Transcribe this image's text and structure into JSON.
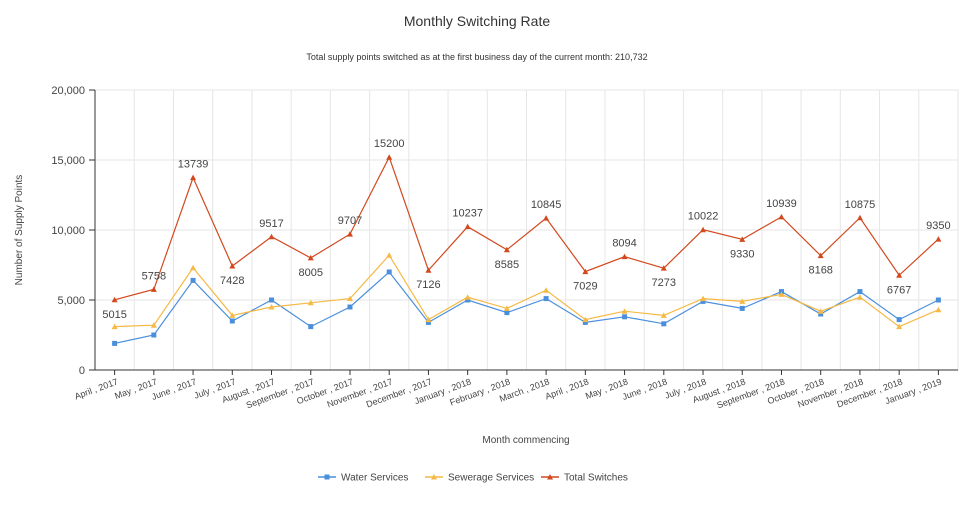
{
  "chart_data": {
    "type": "line",
    "title": "Monthly Switching Rate",
    "subtitle": "Total supply points switched as at the first business day of the current month: 210,732",
    "xlabel": "Month commencing",
    "ylabel": "Number of Supply Points",
    "ylim": [
      0,
      20000
    ],
    "yticks": [
      0,
      5000,
      10000,
      15000,
      20000
    ],
    "ytick_labels": [
      "0",
      "5,000",
      "10,000",
      "15,000",
      "20,000"
    ],
    "grid": true,
    "legend_position": "bottom",
    "categories": [
      "April , 2017",
      "May , 2017",
      "June , 2017",
      "July , 2017",
      "August , 2017",
      "September , 2017",
      "October , 2017",
      "November , 2017",
      "December , 2017",
      "January , 2018",
      "February , 2018",
      "March , 2018",
      "April , 2018",
      "May , 2018",
      "June , 2018",
      "July , 2018",
      "August , 2018",
      "September , 2018",
      "October , 2018",
      "November , 2018",
      "December , 2018",
      "January , 2019"
    ],
    "series": [
      {
        "name": "Water Services",
        "color": "#4a8fdc",
        "marker": "square",
        "show_labels": false,
        "values": [
          1900,
          2500,
          6400,
          3500,
          5000,
          3100,
          4500,
          7000,
          3400,
          5000,
          4100,
          5100,
          3400,
          3800,
          3300,
          4900,
          4400,
          5600,
          4000,
          5600,
          3600,
          5000
        ]
      },
      {
        "name": "Sewerage Services",
        "color": "#f5b944",
        "marker": "triangle",
        "show_labels": false,
        "values": [
          3100,
          3200,
          7300,
          3900,
          4500,
          4800,
          5100,
          8200,
          3600,
          5200,
          4400,
          5700,
          3600,
          4200,
          3900,
          5100,
          4900,
          5400,
          4200,
          5200,
          3100,
          4300
        ]
      },
      {
        "name": "Total Switches",
        "color": "#d2491e",
        "marker": "triangle",
        "show_labels": true,
        "values": [
          5015,
          5758,
          13739,
          7428,
          9517,
          8005,
          9707,
          15200,
          7126,
          10237,
          8585,
          10845,
          7029,
          8094,
          7273,
          10022,
          9330,
          10939,
          8168,
          10875,
          6767,
          9350
        ]
      }
    ],
    "data_labels": [
      "5015",
      "5758",
      "13739",
      "7428",
      "9517",
      "8005",
      "9707",
      "15200",
      "7126",
      "10237",
      "8585",
      "10845",
      "7029",
      "8094",
      "7273",
      "10022",
      "9330",
      "10939",
      "8168",
      "10875",
      "6767",
      "9350"
    ]
  }
}
